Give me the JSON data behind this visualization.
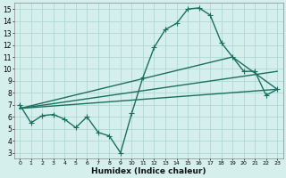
{
  "xlabel": "Humidex (Indice chaleur)",
  "xlim": [
    -0.5,
    23.5
  ],
  "ylim": [
    2.5,
    15.5
  ],
  "xticks": [
    0,
    1,
    2,
    3,
    4,
    5,
    6,
    7,
    8,
    9,
    10,
    11,
    12,
    13,
    14,
    15,
    16,
    17,
    18,
    19,
    20,
    21,
    22,
    23
  ],
  "yticks": [
    3,
    4,
    5,
    6,
    7,
    8,
    9,
    10,
    11,
    12,
    13,
    14,
    15
  ],
  "background_color": "#d5efec",
  "grid_color": "#b2d8d4",
  "line_color": "#1a7060",
  "line_width": 1.0,
  "marker": "+",
  "marker_size": 4,
  "main_curve": [
    [
      0,
      7.0
    ],
    [
      1,
      5.5
    ],
    [
      2,
      6.1
    ],
    [
      3,
      6.2
    ],
    [
      4,
      5.8
    ],
    [
      5,
      5.1
    ],
    [
      6,
      6.0
    ],
    [
      7,
      4.7
    ],
    [
      8,
      4.4
    ],
    [
      9,
      3.0
    ],
    [
      10,
      6.3
    ],
    [
      11,
      9.3
    ],
    [
      12,
      11.8
    ],
    [
      13,
      13.3
    ],
    [
      14,
      13.8
    ],
    [
      15,
      15.0
    ],
    [
      16,
      15.1
    ],
    [
      17,
      14.5
    ],
    [
      18,
      12.2
    ],
    [
      19,
      11.0
    ],
    [
      20,
      9.8
    ],
    [
      21,
      9.8
    ],
    [
      22,
      7.8
    ],
    [
      23,
      8.3
    ]
  ],
  "diag_line1_x": [
    0,
    23
  ],
  "diag_line1_y": [
    6.7,
    8.3
  ],
  "diag_line2_x": [
    0,
    23
  ],
  "diag_line2_y": [
    6.7,
    9.8
  ],
  "diag_line3_x": [
    0,
    19,
    23
  ],
  "diag_line3_y": [
    6.7,
    11.0,
    8.3
  ]
}
